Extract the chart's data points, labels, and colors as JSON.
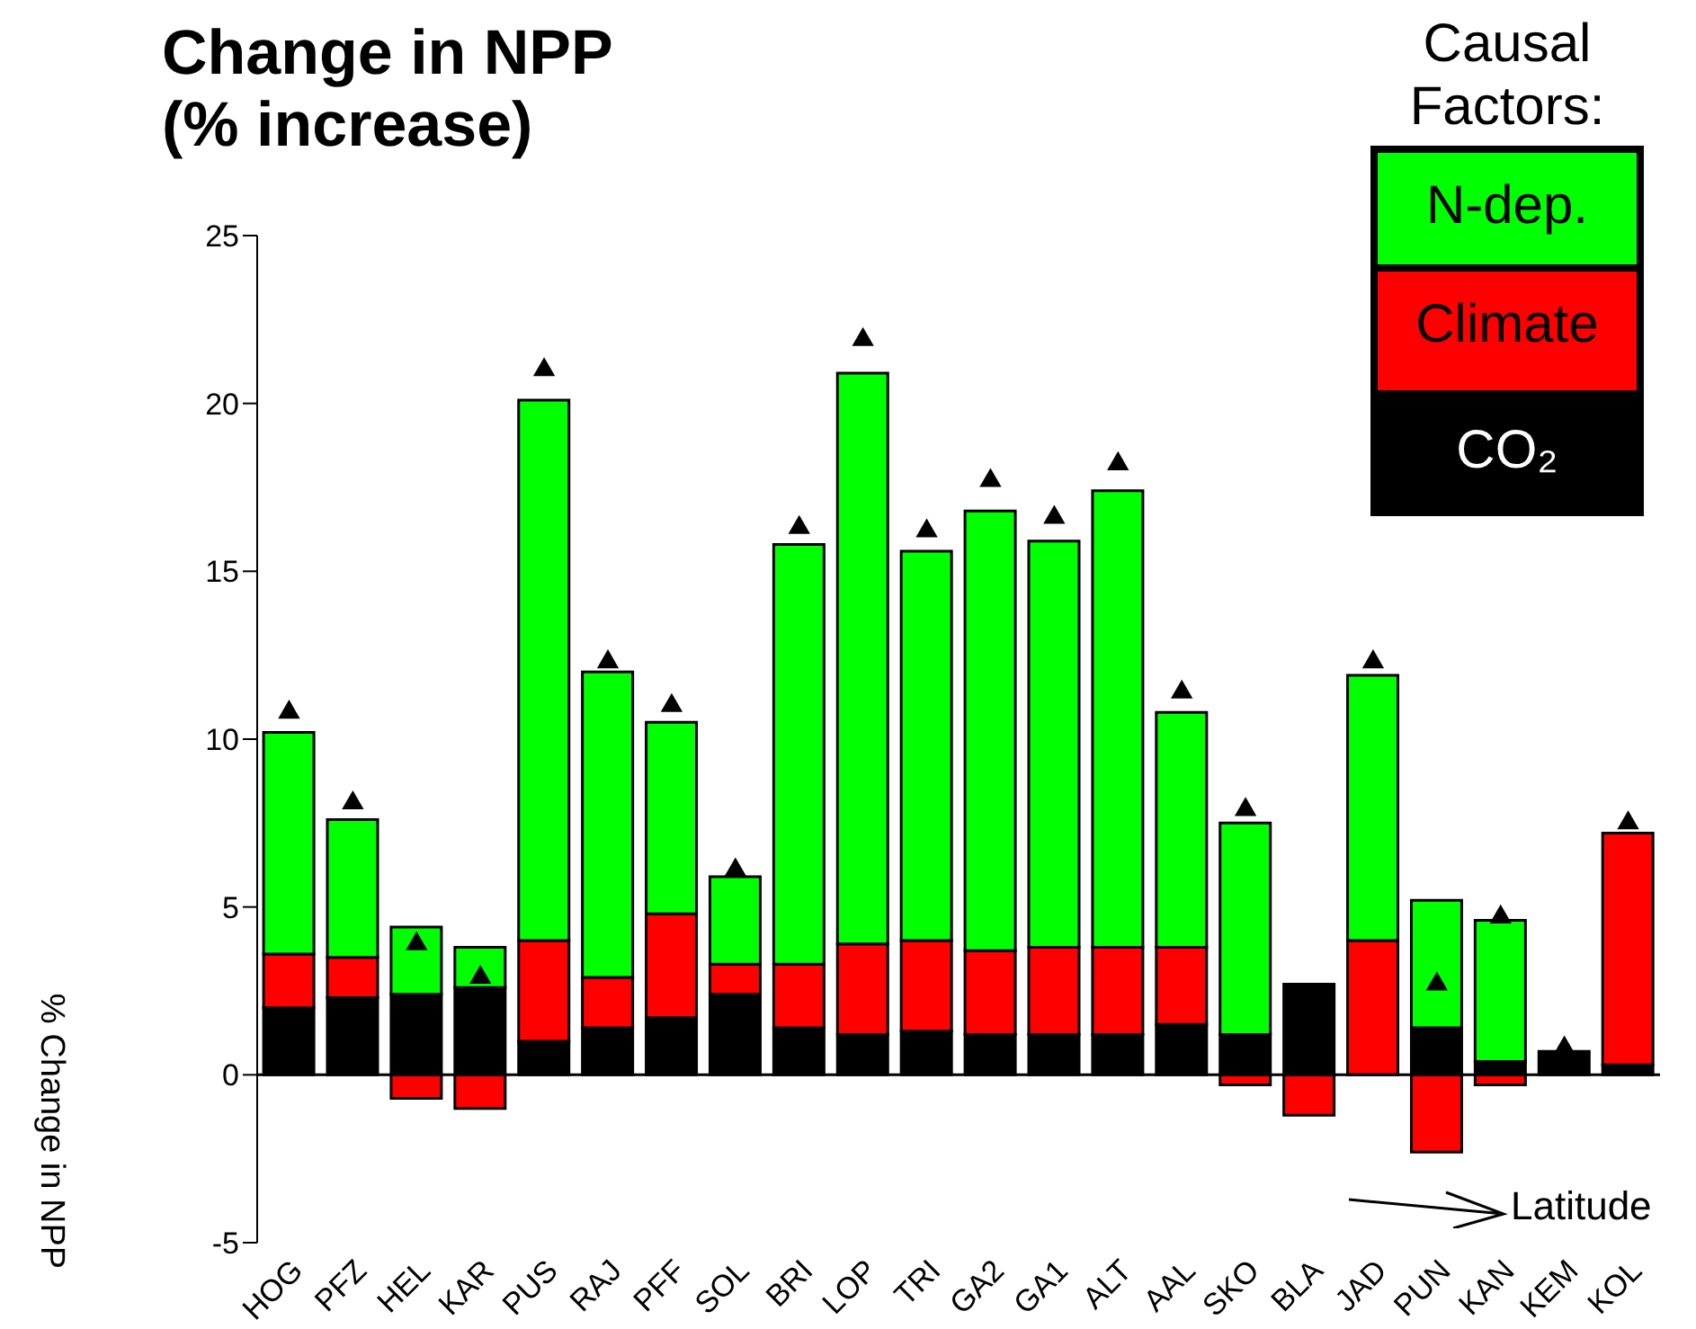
{
  "chart_data": {
    "type": "bar",
    "title": "Change in NPP\n(% increase)",
    "ylabel": "% Change in NPP",
    "legend_title": "Causal\nFactors:",
    "categories": [
      "HOG",
      "PFZ",
      "HEL",
      "KAR",
      "PUS",
      "RAJ",
      "PFF",
      "SOL",
      "BRI",
      "LOP",
      "TRI",
      "GA2",
      "GA1",
      "ALT",
      "AAL",
      "SKO",
      "BLA",
      "JAD",
      "PUN",
      "KAN",
      "KEM",
      "KOL"
    ],
    "stacked": true,
    "series": [
      {
        "name": "CO₂",
        "color": "#000000",
        "values": [
          2.0,
          2.3,
          2.4,
          2.6,
          1.0,
          1.4,
          1.7,
          2.4,
          1.4,
          1.2,
          1.3,
          1.2,
          1.2,
          1.2,
          1.5,
          1.2,
          2.7,
          0,
          1.4,
          0.4,
          0.7,
          0.3
        ]
      },
      {
        "name": "Climate",
        "color": "#ff0000",
        "values": [
          1.6,
          1.2,
          -0.7,
          -1.0,
          3.0,
          1.5,
          3.1,
          0.9,
          1.9,
          2.7,
          2.7,
          2.5,
          2.6,
          2.6,
          2.3,
          -0.3,
          -1.2,
          4.0,
          -2.3,
          -0.3,
          0,
          6.9
        ]
      },
      {
        "name": "N-dep.",
        "color": "#00ff00",
        "values": [
          6.6,
          4.1,
          2.0,
          1.2,
          16.1,
          9.1,
          5.7,
          2.6,
          12.5,
          17.0,
          11.6,
          13.1,
          12.1,
          13.6,
          7.0,
          6.3,
          0,
          7.9,
          3.8,
          4.2,
          0,
          0
        ]
      },
      {
        "type": "scatter",
        "color": "#000000",
        "marker": "triangle",
        "values": [
          10.8,
          8.1,
          3.9,
          2.9,
          21.0,
          12.3,
          11.0,
          6.1,
          16.3,
          21.9,
          16.2,
          17.7,
          16.6,
          18.2,
          11.4,
          7.9,
          null,
          12.3,
          2.7,
          4.7,
          0.8,
          7.5
        ]
      }
    ],
    "ylim": [
      -5,
      25
    ],
    "yticks": [
      -5,
      0,
      5,
      10,
      15,
      20,
      25
    ],
    "grid": false,
    "legend": "top right",
    "ref_lines": [
      {
        "axis": "y",
        "value": 0,
        "color": "#000000"
      }
    ],
    "annotations": [
      "Latitude"
    ]
  }
}
